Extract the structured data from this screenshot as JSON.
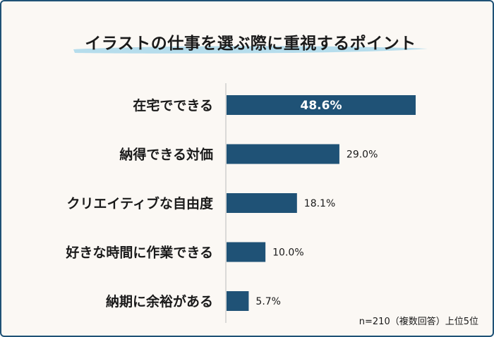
{
  "chart_data": {
    "type": "bar",
    "orientation": "horizontal",
    "title": "イラストの仕事を選ぶ際に重視するポイント",
    "categories": [
      "在宅でできる",
      "納得できる対価",
      "クリエイティブな自由度",
      "好きな時間に作業できる",
      "納期に余裕がある"
    ],
    "values": [
      48.6,
      29.0,
      18.1,
      10.0,
      5.7
    ],
    "value_labels": [
      "48.6%",
      "29.0%",
      "18.1%",
      "10.0%",
      "5.7%"
    ],
    "note": "n=210（複数回答）上位5位",
    "bar_color": "#1f5276",
    "grid": false
  }
}
